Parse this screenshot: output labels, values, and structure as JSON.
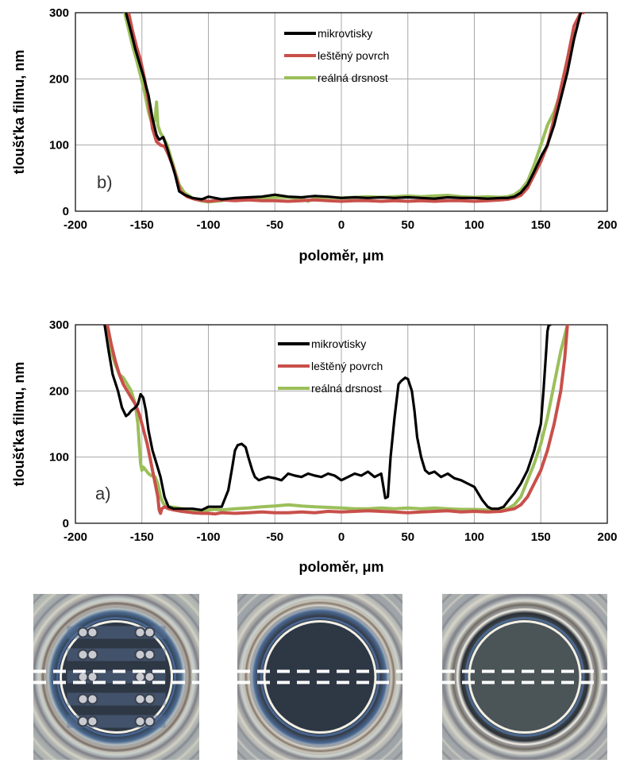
{
  "colors": {
    "mikrovtisky": "#000000",
    "lesteny": "#c8504a",
    "realna": "#9bbf5a",
    "grid": "#a8a8a8"
  },
  "chart_data": [
    {
      "id": "b",
      "type": "line",
      "panel_label": "b)",
      "xlabel": "poloměr, μm",
      "ylabel": "tloušťka filmu, nm",
      "xlim": [
        -200,
        200
      ],
      "ylim": [
        0,
        300
      ],
      "xticks": [
        -200,
        -150,
        -100,
        -50,
        0,
        50,
        100,
        150,
        200
      ],
      "yticks": [
        0,
        100,
        200,
        300
      ],
      "grid": true,
      "legend_position": "top-right",
      "series": [
        {
          "name": "mikrovtisky",
          "color_key": "mikrovtisky",
          "x": [
            -162,
            -158,
            -155,
            -152,
            -149,
            -145,
            -142,
            -139,
            -137,
            -134,
            -131,
            -128,
            -125,
            -122,
            -118,
            -112,
            -105,
            -100,
            -95,
            -90,
            -80,
            -70,
            -60,
            -50,
            -40,
            -30,
            -20,
            -10,
            0,
            10,
            20,
            30,
            40,
            50,
            60,
            70,
            80,
            90,
            100,
            110,
            120,
            125,
            130,
            135,
            140,
            145,
            150,
            155,
            160,
            165,
            170,
            175,
            180
          ],
          "y": [
            300,
            270,
            245,
            225,
            205,
            175,
            140,
            115,
            108,
            112,
            95,
            75,
            55,
            30,
            25,
            20,
            18,
            22,
            20,
            18,
            20,
            21,
            22,
            25,
            22,
            21,
            23,
            22,
            20,
            21,
            20,
            21,
            20,
            21,
            20,
            19,
            21,
            20,
            20,
            19,
            20,
            20,
            22,
            28,
            40,
            60,
            82,
            100,
            130,
            170,
            210,
            260,
            300
          ]
        },
        {
          "name": "leštěný povrch",
          "color_key": "lesteny",
          "x": [
            -160,
            -157,
            -154,
            -151,
            -148,
            -145,
            -142,
            -139,
            -136,
            -133,
            -130,
            -127,
            -124,
            -121,
            -116,
            -110,
            -104,
            -100,
            -95,
            -90,
            -80,
            -70,
            -60,
            -50,
            -40,
            -30,
            -20,
            -10,
            0,
            10,
            20,
            30,
            40,
            50,
            60,
            70,
            80,
            90,
            100,
            110,
            120,
            125,
            130,
            135,
            140,
            145,
            150,
            155,
            160,
            165,
            170,
            175,
            180,
            182
          ],
          "y": [
            300,
            272,
            248,
            228,
            200,
            165,
            125,
            105,
            100,
            98,
            85,
            70,
            50,
            30,
            22,
            18,
            16,
            15,
            16,
            17,
            16,
            17,
            16,
            16,
            15,
            16,
            17,
            16,
            15,
            16,
            16,
            15,
            16,
            15,
            16,
            15,
            16,
            16,
            15,
            16,
            17,
            18,
            20,
            24,
            35,
            55,
            75,
            100,
            140,
            185,
            230,
            280,
            300,
            300
          ]
        },
        {
          "name": "reálná drsnost",
          "color_key": "realna",
          "x": [
            -163,
            -160,
            -157,
            -154,
            -151,
            -148,
            -145,
            -142,
            -140,
            -139,
            -138,
            -136,
            -134,
            -131,
            -128,
            -125,
            -122,
            -118,
            -112,
            -106,
            -100,
            -95,
            -90,
            -85,
            -80,
            -70,
            -60,
            -50,
            -40,
            -30,
            -25,
            -22,
            -18,
            -10,
            0,
            10,
            20,
            30,
            40,
            50,
            60,
            70,
            80,
            90,
            100,
            110,
            120,
            125,
            130,
            135,
            140,
            145,
            150,
            155,
            160,
            165,
            170,
            175
          ],
          "y": [
            300,
            275,
            250,
            228,
            205,
            180,
            150,
            130,
            140,
            165,
            130,
            118,
            112,
            100,
            80,
            60,
            40,
            28,
            20,
            16,
            14,
            15,
            16,
            18,
            19,
            20,
            20,
            21,
            21,
            19,
            15,
            18,
            20,
            21,
            20,
            21,
            22,
            21,
            22,
            23,
            22,
            23,
            24,
            22,
            21,
            22,
            21,
            22,
            25,
            32,
            45,
            70,
            100,
            130,
            150,
            180,
            220,
            270
          ]
        }
      ]
    },
    {
      "id": "a",
      "type": "line",
      "panel_label": "a)",
      "xlabel": "poloměr, μm",
      "ylabel": "tloušťka filmu, nm",
      "xlim": [
        -200,
        200
      ],
      "ylim": [
        0,
        300
      ],
      "xticks": [
        -200,
        -150,
        -100,
        -50,
        0,
        50,
        100,
        150,
        200
      ],
      "yticks": [
        0,
        100,
        200,
        300
      ],
      "grid": true,
      "legend_position": "top-right",
      "series": [
        {
          "name": "mikrovtisky",
          "color_key": "mikrovtisky",
          "x": [
            -178,
            -175,
            -172,
            -168,
            -165,
            -162,
            -160,
            -158,
            -155,
            -153,
            -151,
            -149,
            -147,
            -145,
            -142,
            -139,
            -136,
            -133,
            -130,
            -126,
            -120,
            -112,
            -105,
            -100,
            -95,
            -90,
            -85,
            -82,
            -80,
            -78,
            -75,
            -72,
            -70,
            -67,
            -65,
            -62,
            -58,
            -55,
            -50,
            -45,
            -40,
            -35,
            -30,
            -25,
            -20,
            -15,
            -10,
            -5,
            0,
            5,
            10,
            15,
            20,
            25,
            30,
            33,
            35,
            37,
            40,
            43,
            45,
            48,
            50,
            53,
            55,
            57,
            60,
            63,
            66,
            70,
            75,
            80,
            85,
            90,
            95,
            100,
            103,
            106,
            110,
            113,
            118,
            122,
            126,
            130,
            135,
            140,
            145,
            150,
            152,
            154,
            155,
            156,
            157
          ],
          "y": [
            300,
            260,
            225,
            200,
            175,
            162,
            165,
            170,
            175,
            180,
            195,
            190,
            170,
            140,
            110,
            90,
            70,
            40,
            25,
            22,
            22,
            22,
            20,
            25,
            25,
            25,
            50,
            85,
            110,
            118,
            120,
            115,
            100,
            80,
            70,
            65,
            68,
            70,
            68,
            65,
            75,
            72,
            70,
            75,
            72,
            70,
            75,
            72,
            65,
            70,
            75,
            72,
            78,
            70,
            75,
            38,
            40,
            100,
            160,
            210,
            215,
            220,
            218,
            200,
            170,
            130,
            100,
            80,
            75,
            78,
            70,
            75,
            68,
            65,
            60,
            55,
            45,
            35,
            25,
            22,
            22,
            25,
            35,
            45,
            60,
            80,
            110,
            150,
            200,
            260,
            290,
            300,
            300
          ]
        },
        {
          "name": "leštěný povrch",
          "color_key": "lesteny",
          "x": [
            -176,
            -173,
            -170,
            -167,
            -164,
            -161,
            -158,
            -155,
            -152,
            -150,
            -148,
            -146,
            -144,
            -142,
            -140,
            -138,
            -137,
            -136,
            -135,
            -133,
            -130,
            -126,
            -120,
            -112,
            -105,
            -100,
            -95,
            -90,
            -80,
            -70,
            -60,
            -50,
            -40,
            -30,
            -20,
            -10,
            0,
            10,
            20,
            30,
            40,
            50,
            60,
            70,
            80,
            90,
            100,
            110,
            120,
            125,
            130,
            135,
            140,
            145,
            150,
            155,
            160,
            165,
            168,
            170
          ],
          "y": [
            300,
            270,
            245,
            225,
            210,
            200,
            190,
            180,
            165,
            150,
            135,
            120,
            100,
            80,
            60,
            40,
            20,
            15,
            22,
            25,
            22,
            20,
            18,
            16,
            15,
            15,
            14,
            16,
            15,
            16,
            17,
            16,
            16,
            17,
            16,
            18,
            17,
            18,
            19,
            18,
            17,
            16,
            17,
            18,
            19,
            17,
            18,
            17,
            18,
            20,
            22,
            28,
            40,
            60,
            80,
            110,
            150,
            200,
            250,
            300
          ]
        },
        {
          "name": "reálná drsnost",
          "color_key": "realna",
          "x": [
            -177,
            -174,
            -170,
            -167,
            -164,
            -161,
            -158,
            -155,
            -153,
            -152,
            -151,
            -150,
            -149,
            -147,
            -145,
            -143,
            -140,
            -138,
            -136,
            -134,
            -130,
            -125,
            -120,
            -112,
            -105,
            -100,
            -95,
            -90,
            -80,
            -70,
            -60,
            -50,
            -40,
            -30,
            -20,
            -10,
            0,
            10,
            20,
            30,
            40,
            50,
            60,
            70,
            80,
            90,
            100,
            110,
            120,
            125,
            130,
            135,
            140,
            145,
            150,
            155,
            160,
            165,
            170
          ],
          "y": [
            300,
            265,
            240,
            225,
            220,
            210,
            200,
            180,
            150,
            120,
            90,
            80,
            85,
            80,
            75,
            72,
            70,
            60,
            40,
            30,
            25,
            24,
            22,
            20,
            19,
            20,
            21,
            20,
            22,
            23,
            25,
            26,
            28,
            26,
            25,
            24,
            23,
            22,
            22,
            23,
            22,
            23,
            22,
            23,
            22,
            21,
            21,
            20,
            21,
            22,
            28,
            40,
            65,
            90,
            120,
            160,
            210,
            260,
            300
          ]
        }
      ]
    }
  ],
  "photos": [
    {
      "id": "micro",
      "dots": true
    },
    {
      "id": "polished",
      "dots": false
    },
    {
      "id": "real",
      "dots": false
    }
  ]
}
